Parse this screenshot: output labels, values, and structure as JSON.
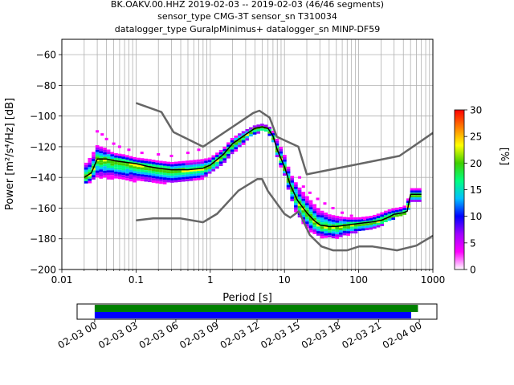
{
  "chart_data": {
    "type": "heatmap",
    "title_lines": [
      "BK.OAKV.00.HHZ   2019-02-03 -- 2019-02-03  (46/46 segments)",
      "sensor_type CMG-3T sensor_sn T310034",
      "datalogger_type GuralpMinimus+ datalogger_sn MINP-DF59"
    ],
    "xlabel": "Period [s]",
    "ylabel": "Power [m²/s⁴/Hz] [dB]",
    "x_scale": "log",
    "xlim": [
      0.01,
      1000
    ],
    "ylim": [
      -200,
      -50
    ],
    "x_ticks": [
      0.01,
      0.1,
      1,
      10,
      100,
      1000
    ],
    "x_tick_labels": [
      "0.01",
      "0.1",
      "1",
      "10",
      "100",
      "1000"
    ],
    "y_ticks": [
      -200,
      -180,
      -160,
      -140,
      -120,
      -100,
      -80,
      -60
    ],
    "y_tick_labels": [
      "−200",
      "−180",
      "−160",
      "−140",
      "−120",
      "−100",
      "−80",
      "−60"
    ],
    "grid": true,
    "colorbar": {
      "label": "[%]",
      "range": [
        0,
        30
      ],
      "ticks": [
        0,
        5,
        10,
        15,
        20,
        25,
        30
      ],
      "colors": [
        "#ffffff",
        "#ff00ff",
        "#a000ff",
        "#0000ff",
        "#00c0ff",
        "#00ff80",
        "#40d000",
        "#ffff00",
        "#ff8000",
        "#ff0000"
      ]
    },
    "mode_curve": {
      "name": "mode",
      "color": "#000000",
      "x": [
        0.02,
        0.025,
        0.03,
        0.04,
        0.05,
        0.07,
        0.1,
        0.15,
        0.2,
        0.3,
        0.5,
        0.8,
        1.0,
        1.5,
        2,
        3,
        4,
        5,
        6,
        7,
        8,
        10,
        12,
        15,
        20,
        25,
        30,
        40,
        50,
        70,
        100,
        150,
        200,
        250,
        300,
        400,
        450,
        500,
        600,
        700
      ],
      "y": [
        -140,
        -137,
        -128,
        -128,
        -129,
        -130,
        -131,
        -133,
        -134,
        -135,
        -135,
        -134,
        -132,
        -125,
        -118,
        -112,
        -108,
        -107,
        -108,
        -113,
        -122,
        -133,
        -145,
        -155,
        -163,
        -168,
        -171,
        -172,
        -172,
        -171,
        -170,
        -169,
        -168,
        -166,
        -164,
        -163,
        -162,
        -151,
        -151,
        -151
      ]
    },
    "nhnm": {
      "name": "high noise model",
      "color": "#666666",
      "x": [
        0.1,
        0.22,
        0.32,
        0.8,
        3.8,
        4.6,
        6.3,
        7.9,
        15.4,
        20,
        354.8,
        1000
      ],
      "y": [
        -91.5,
        -97.4,
        -110.5,
        -120,
        -98,
        -96.5,
        -101,
        -113.5,
        -120,
        -138,
        -126,
        -111
      ]
    },
    "nlnm": {
      "name": "low noise model",
      "color": "#666666",
      "x": [
        0.1,
        0.17,
        0.4,
        0.8,
        1.24,
        2.4,
        4.3,
        5,
        6,
        10,
        12,
        15.6,
        21.9,
        31.6,
        45,
        70,
        101,
        154,
        328,
        600,
        1000
      ],
      "y": [
        -168,
        -166.7,
        -166.7,
        -169.2,
        -163.7,
        -148.6,
        -141.1,
        -141.1,
        -149,
        -163.8,
        -166.2,
        -162.1,
        -177.5,
        -185,
        -187.5,
        -187.5,
        -185,
        -185,
        -187.5,
        -184.4,
        -178
      ]
    },
    "density_bands": [
      {
        "x": [
          0.02,
          0.025,
          0.03,
          0.04,
          0.05,
          0.07,
          0.1,
          0.15,
          0.2,
          0.3,
          0.5,
          0.8,
          1.0,
          1.5,
          2,
          3,
          4,
          5,
          6,
          7,
          8,
          10,
          12,
          15,
          20,
          25,
          30,
          40,
          50,
          70,
          100,
          150,
          200,
          250,
          300,
          400,
          450,
          500,
          600,
          700
        ],
        "y_lo": [
          -144,
          -142,
          -140,
          -140,
          -140,
          -141,
          -142,
          -143,
          -143,
          -143,
          -142,
          -140,
          -137,
          -131,
          -124,
          -116,
          -111,
          -109,
          -110,
          -116,
          -126,
          -138,
          -152,
          -164,
          -173,
          -176,
          -178,
          -179,
          -179,
          -177,
          -175,
          -173,
          -171,
          -168,
          -166,
          -165,
          -163,
          -155,
          -155,
          -155
        ],
        "y_hi": [
          -132,
          -126,
          -119,
          -121,
          -124,
          -125,
          -127,
          -128,
          -129,
          -130,
          -129,
          -128,
          -127,
          -121,
          -114,
          -109,
          -106,
          -105,
          -106,
          -109,
          -115,
          -125,
          -137,
          -145,
          -152,
          -157,
          -161,
          -164,
          -165,
          -166,
          -166,
          -165,
          -163,
          -161,
          -160,
          -159,
          -157,
          -147,
          -147,
          -147
        ]
      }
    ],
    "scatter_points": {
      "x": [
        0.03,
        0.035,
        0.04,
        0.05,
        0.06,
        0.08,
        0.12,
        0.2,
        0.3,
        0.5,
        0.7,
        16,
        18,
        22,
        28,
        35,
        45,
        60,
        80,
        120
      ],
      "y": [
        -110,
        -112,
        -115,
        -118,
        -120,
        -122,
        -124,
        -125,
        -126,
        -124,
        -122,
        -140,
        -146,
        -150,
        -154,
        -157,
        -160,
        -163,
        -165,
        -167
      ]
    }
  },
  "timeline": {
    "tick_labels": [
      "02-03 00",
      "02-03 03",
      "02-03 06",
      "02-03 09",
      "02-03 12",
      "02-03 15",
      "02-03 18",
      "02-03 21",
      "02-04 00"
    ],
    "tick_hours": [
      0,
      3,
      6,
      9,
      12,
      15,
      18,
      21,
      24
    ],
    "xlim_hours": [
      -1.3,
      25.3
    ],
    "bars": [
      {
        "name": "data availability",
        "start_hour": 0,
        "end_hour": 23.9,
        "color": "#008000"
      },
      {
        "name": "psd segments",
        "start_hour": 0,
        "end_hour": 23.4,
        "color": "#0000ff"
      }
    ]
  }
}
